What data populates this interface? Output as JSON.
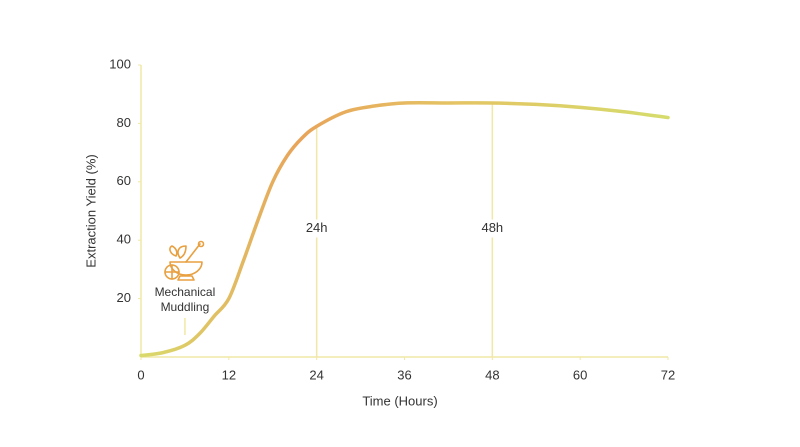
{
  "chart_data": {
    "type": "line",
    "x_label": "Time (Hours)",
    "y_label": "Extraction Yield (%)",
    "x": [
      0,
      3,
      6,
      8,
      10,
      12,
      14,
      16,
      18,
      20,
      22,
      24,
      28,
      32,
      36,
      42,
      48,
      54,
      60,
      66,
      72
    ],
    "series": [
      {
        "name": "Extraction Yield",
        "color": "#e8a858",
        "values": [
          0.5,
          1.5,
          4,
          8,
          14,
          20,
          33,
          47,
          60,
          69,
          75,
          79,
          84,
          86,
          87,
          87,
          87,
          86.5,
          85.5,
          84,
          82
        ]
      }
    ],
    "xlim": [
      0,
      72
    ],
    "xticks": [
      0,
      12,
      24,
      36,
      48,
      60,
      72
    ],
    "ylim": [
      0,
      100
    ],
    "yticks": [
      20,
      40,
      60,
      80,
      100
    ],
    "axis_color": "#f1e7a6",
    "grid": false,
    "annotations": [
      {
        "x": 24,
        "label": [
          "24h"
        ]
      },
      {
        "x": 48,
        "label": [
          "48h"
        ]
      },
      {
        "x": 6,
        "label": [
          "Mechanical",
          "Muddling"
        ]
      }
    ]
  }
}
